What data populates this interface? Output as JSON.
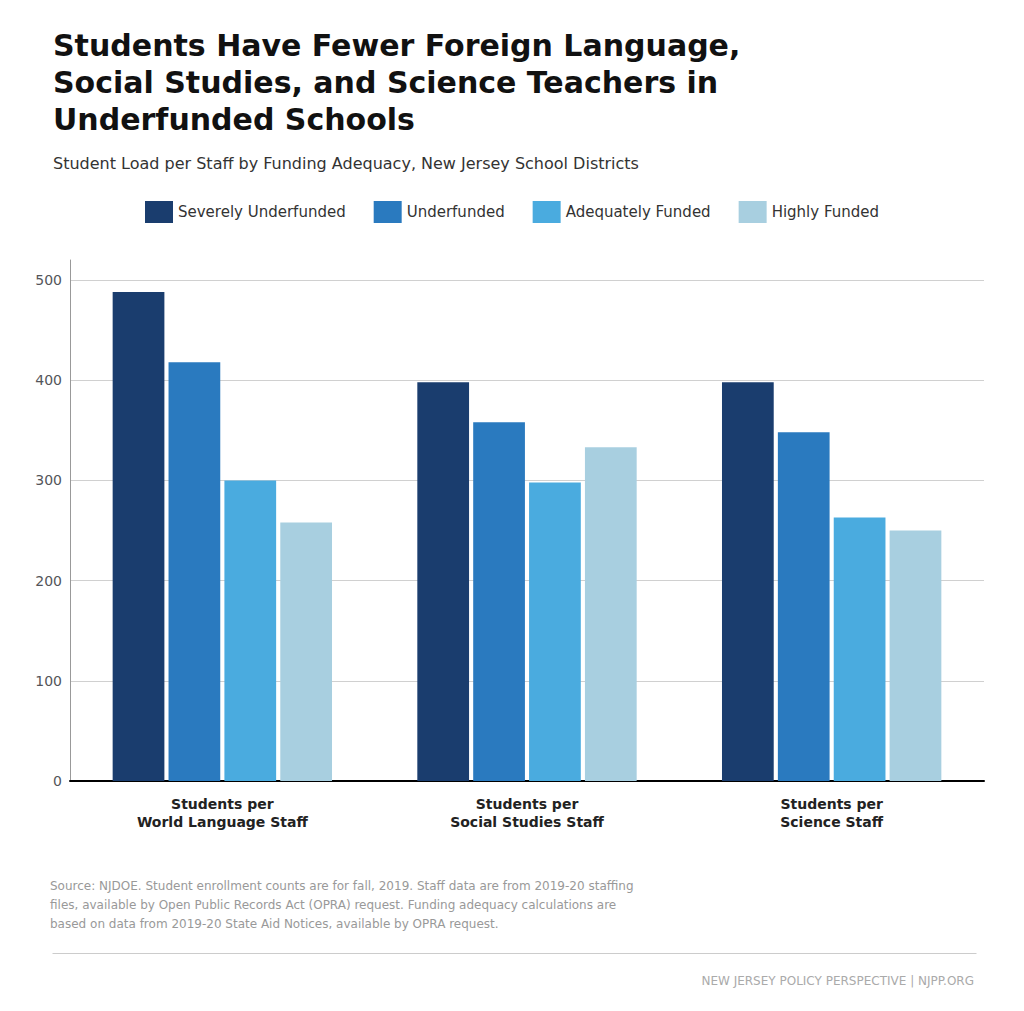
{
  "chart_data": {
    "type": "bar",
    "title": "Students Have Fewer Foreign Language,\nSocial Studies, and Science Teachers in\nUnderfunded Schools",
    "subtitle": "Student Load per Staff by Funding Adequacy, New Jersey School Districts",
    "categories": [
      "Students per\nWorld Language Staff",
      "Students per\nSocial Studies Staff",
      "Students per\nScience Staff"
    ],
    "series": [
      {
        "name": "Severely Underfunded",
        "color": "#1a3d6e",
        "values": [
          488,
          398,
          398
        ]
      },
      {
        "name": "Underfunded",
        "color": "#2a7abf",
        "values": [
          418,
          358,
          348
        ]
      },
      {
        "name": "Adequately Funded",
        "color": "#4aabdf",
        "values": [
          300,
          298,
          263
        ]
      },
      {
        "name": "Highly Funded",
        "color": "#a8cfe0",
        "values": [
          258,
          333,
          250
        ]
      }
    ],
    "ylim": [
      0,
      520
    ],
    "yticks": [
      0,
      100,
      200,
      300,
      400,
      500
    ],
    "grid": true,
    "legend": "top",
    "annotations": [
      "Source: NJDOE. Student enrollment counts are for fall, 2019. Staff data are from 2019-20 staffing\nfiles, available by Open Public Records Act (OPRA) request. Funding adequacy calculations are\nbased on data from 2019-20 State Aid Notices, available by OPRA request.",
      "NEW JERSEY POLICY PERSPECTIVE | NJPP.ORG"
    ]
  }
}
